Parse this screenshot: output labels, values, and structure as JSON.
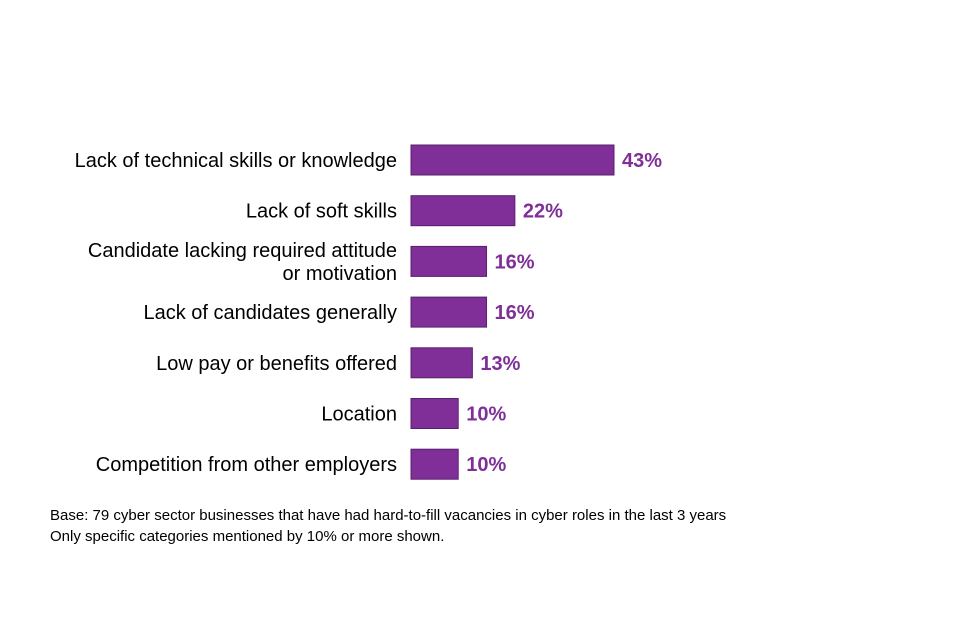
{
  "chart_data": {
    "type": "bar",
    "orientation": "horizontal",
    "categories": [
      [
        "Lack of technical skills or knowledge"
      ],
      [
        "Lack of soft skills"
      ],
      [
        "Candidate lacking required attitude",
        "or motivation"
      ],
      [
        "Lack of candidates generally"
      ],
      [
        "Low pay or benefits offered"
      ],
      [
        "Location"
      ],
      [
        "Competition from other employers"
      ]
    ],
    "values": [
      43,
      22,
      16,
      16,
      13,
      10,
      10
    ],
    "value_labels": [
      "43%",
      "22%",
      "16%",
      "16%",
      "13%",
      "10%",
      "10%"
    ],
    "unit": "%",
    "xlim": [
      0,
      100
    ],
    "grid": false,
    "legend": "none"
  },
  "colors": {
    "bar": "#7f2f97",
    "value_label": "#7f2f97"
  },
  "notes": {
    "base": "Base: 79 cyber sector businesses that have had hard-to-fill vacancies in cyber roles in the last 3 years",
    "filter": "Only specific categories mentioned by 10% or more shown."
  }
}
